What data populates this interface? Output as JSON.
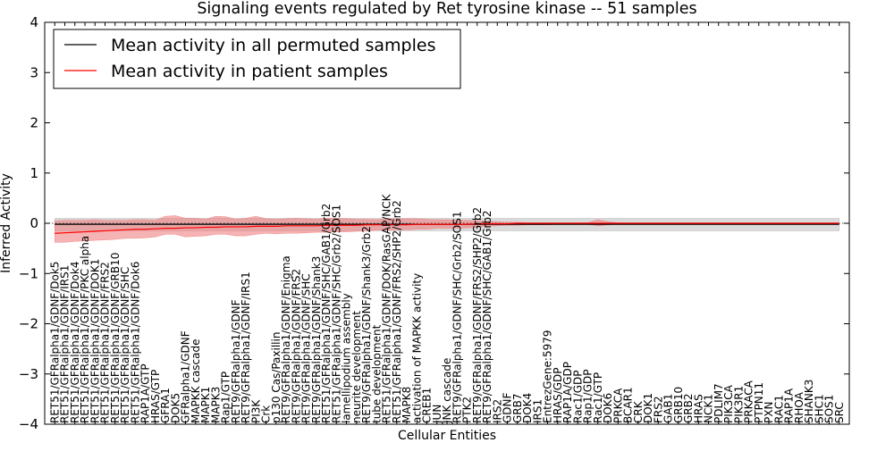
{
  "chart_data": {
    "type": "line",
    "title": "Signaling events regulated by Ret tyrosine kinase -- 51 samples",
    "xlabel": "Cellular Entities",
    "ylabel": "Inferred Activity",
    "ylim": [
      -4,
      4
    ],
    "yticks": [
      -4,
      -3,
      -2,
      -1,
      0,
      1,
      2,
      3,
      4
    ],
    "grid": false,
    "legend_position": "top-left",
    "colors": {
      "permuted_line": "#000000",
      "patient_line": "#ff0000",
      "permuted_band": "#bbbbbb",
      "patient_band": "#f08080"
    },
    "categories": [
      "RET51/GFRalpha1/GDNF/Dok5",
      "RET51/GFRalpha1/GDNF/IRS1",
      "RET51/GFRalpha1/GDNF/Dok4",
      "RET51/GFRalpha1/GDNF/PKC alpha",
      "RET51/GFRalpha1/GDNF/DOK1",
      "RET51/GFRalpha1/GDNF/FRS2",
      "RET51/GFRalpha1/GDNF/GRB10",
      "RET51/GFRalpha1/GDNF/SHC",
      "RET51/GFRalpha1/GDNF/Dok6",
      "RAP1A/GTP",
      "HRAS/GTP",
      "GFRA1",
      "DOK5",
      "GFRalpha1/GDNF",
      "MAPKK cascade",
      "MAPK1",
      "MAPK3",
      "Rap1/GTP",
      "RET9/GFRalpha1/GDNF",
      "RET9/GFRalpha1/GDNF/IRS1",
      "PI3K",
      "Crk",
      "p130 Cas/Paxillin",
      "RET9/GFRalpha1/GDNF/Enigma",
      "RET9/GFRalpha1/GDNF/FRS2",
      "RET9/GFRalpha1/GDNF/SHC",
      "RET9/GFRalpha1/GDNF/Shank3",
      "RET51/GFRalpha1/GDNF/SHC/GAB1/Grb2",
      "RET51/GFRalpha1/GDNF/SHC/Grb2/SOS1",
      "lamellipodium assembly",
      "neurite development",
      "RET9/GFRalpha1/GDNF/Shank3/Grb2",
      "tube development",
      "RET51/GFRalpha1/GDNF/DOK/RasGAP/NCK",
      "RET51/GFRalpha1/GDNF/FRS2/SHP2/Grb2",
      "MAPK8",
      "activation of MAPKK activity",
      "CREB1",
      "JUN",
      "JNK cascade",
      "RET9/GFRalpha1/GDNF/SHC/Grb2/SOS1",
      "PTK2",
      "RET9/GFRalpha1/GDNF/FRS2/SHP2/Grb2",
      "RET9/GFRalpha1/GDNF/SHC/GAB1/Grb2",
      "IRS2",
      "GDNF",
      "GRB7",
      "DOK4",
      "IRS1",
      "EntrezGene:5979",
      "HRAS/GDP",
      "RAP1A/GDP",
      "Rac1/GDP",
      "Rap1/GDP",
      "Rac1/GTP",
      "DOK6",
      "PRKCA",
      "BCAR1",
      "CRK",
      "DOK1",
      "FRS2",
      "GAB1",
      "GRB10",
      "GRB2",
      "HRAS",
      "NCK1",
      "PDLIM7",
      "PIK3CA",
      "PIK3R1",
      "PRKACA",
      "PTPN11",
      "PXN",
      "RAC1",
      "RAP1A",
      "RHOA",
      "SHANK3",
      "SHC1",
      "SOS1",
      "SRC"
    ],
    "series": [
      {
        "name": "Mean activity in all permuted samples",
        "values": [
          -0.02,
          -0.02,
          -0.02,
          -0.02,
          -0.02,
          -0.02,
          -0.02,
          -0.02,
          -0.02,
          -0.02,
          -0.02,
          -0.02,
          -0.02,
          -0.02,
          -0.02,
          -0.02,
          -0.02,
          -0.02,
          -0.02,
          -0.02,
          -0.02,
          -0.02,
          -0.02,
          -0.02,
          -0.02,
          -0.02,
          -0.02,
          -0.02,
          -0.02,
          -0.02,
          -0.02,
          -0.02,
          -0.02,
          -0.02,
          -0.02,
          -0.02,
          -0.02,
          -0.02,
          -0.02,
          -0.02,
          -0.02,
          -0.02,
          -0.02,
          -0.02,
          -0.02,
          -0.02,
          -0.02,
          -0.02,
          -0.02,
          -0.02,
          -0.02,
          -0.02,
          -0.02,
          -0.02,
          -0.02,
          -0.02,
          -0.02,
          -0.02,
          -0.02,
          -0.02,
          -0.02,
          -0.02,
          -0.02,
          -0.02,
          -0.02,
          -0.02,
          -0.02,
          -0.02,
          -0.02,
          -0.02,
          -0.02,
          -0.02,
          -0.02,
          -0.02,
          -0.02,
          -0.02,
          -0.02,
          -0.02,
          -0.02
        ],
        "band_low": [
          -0.15,
          -0.15,
          -0.15,
          -0.15,
          -0.15,
          -0.15,
          -0.15,
          -0.15,
          -0.15,
          -0.15,
          -0.15,
          -0.15,
          -0.15,
          -0.15,
          -0.15,
          -0.15,
          -0.15,
          -0.15,
          -0.15,
          -0.15,
          -0.15,
          -0.15,
          -0.15,
          -0.15,
          -0.15,
          -0.15,
          -0.15,
          -0.15,
          -0.15,
          -0.15,
          -0.15,
          -0.15,
          -0.15,
          -0.15,
          -0.15,
          -0.15,
          -0.15,
          -0.15,
          -0.15,
          -0.15,
          -0.15,
          -0.15,
          -0.15,
          -0.15,
          -0.15,
          -0.15,
          -0.15,
          -0.15,
          -0.15,
          -0.15,
          -0.15,
          -0.15,
          -0.15,
          -0.15,
          -0.15,
          -0.15,
          -0.15,
          -0.15,
          -0.15,
          -0.15,
          -0.15,
          -0.15,
          -0.15,
          -0.15,
          -0.15,
          -0.15,
          -0.15,
          -0.15,
          -0.15,
          -0.15,
          -0.15,
          -0.15,
          -0.15,
          -0.15,
          -0.15,
          -0.15,
          -0.15,
          -0.15,
          -0.15
        ],
        "band_high": [
          0.1,
          0.1,
          0.1,
          0.1,
          0.1,
          0.1,
          0.1,
          0.1,
          0.1,
          0.1,
          0.1,
          0.1,
          0.1,
          0.1,
          0.1,
          0.1,
          0.1,
          0.1,
          0.1,
          0.1,
          0.1,
          0.1,
          0.1,
          0.1,
          0.1,
          0.1,
          0.1,
          0.1,
          0.1,
          0.1,
          0.1,
          0.1,
          0.1,
          0.1,
          0.1,
          0.1,
          0.1,
          0.1,
          0.1,
          0.1,
          0.1,
          0.1,
          0.1,
          0.1,
          0.1,
          0.1,
          0.1,
          0.1,
          0.1,
          0.1,
          0.1,
          0.1,
          0.1,
          0.1,
          0.1,
          0.1,
          0.1,
          0.1,
          0.1,
          0.1,
          0.1,
          0.1,
          0.1,
          0.1,
          0.1,
          0.1,
          0.1,
          0.1,
          0.1,
          0.1,
          0.1,
          0.1,
          0.1,
          0.1,
          0.1,
          0.1,
          0.1,
          0.1,
          0.1
        ]
      },
      {
        "name": "Mean activity in patient samples",
        "values": [
          -0.2,
          -0.19,
          -0.18,
          -0.17,
          -0.16,
          -0.15,
          -0.14,
          -0.13,
          -0.12,
          -0.12,
          -0.11,
          -0.1,
          -0.1,
          -0.09,
          -0.09,
          -0.08,
          -0.08,
          -0.07,
          -0.07,
          -0.07,
          -0.06,
          -0.06,
          -0.06,
          -0.05,
          -0.05,
          -0.05,
          -0.05,
          -0.04,
          -0.04,
          -0.04,
          -0.04,
          -0.03,
          -0.03,
          -0.03,
          -0.03,
          -0.03,
          -0.02,
          -0.02,
          -0.02,
          -0.02,
          -0.02,
          -0.02,
          -0.01,
          -0.01,
          -0.01,
          -0.01,
          0,
          0,
          0,
          0,
          0,
          0,
          0,
          0,
          0,
          0,
          0,
          0,
          0,
          0,
          0,
          0,
          0,
          0,
          0,
          0,
          0,
          0,
          0,
          0,
          0,
          0,
          0,
          0,
          0,
          0,
          0,
          0,
          0
        ],
        "band_low": [
          -0.38,
          -0.38,
          -0.36,
          -0.35,
          -0.34,
          -0.33,
          -0.32,
          -0.3,
          -0.3,
          -0.29,
          -0.27,
          -0.22,
          -0.22,
          -0.27,
          -0.26,
          -0.25,
          -0.22,
          -0.22,
          -0.25,
          -0.25,
          -0.22,
          -0.2,
          -0.21,
          -0.2,
          -0.2,
          -0.19,
          -0.18,
          -0.18,
          -0.17,
          -0.17,
          -0.16,
          -0.15,
          -0.14,
          -0.14,
          -0.13,
          -0.13,
          -0.12,
          -0.12,
          -0.1,
          -0.1,
          -0.1,
          -0.09,
          -0.08,
          -0.06,
          -0.05,
          -0.04,
          -0.04,
          -0.03,
          -0.03,
          -0.03,
          -0.02,
          -0.02,
          -0.02,
          -0.02,
          -0.05,
          -0.03,
          -0.02,
          -0.02,
          -0.02,
          -0.02,
          -0.02,
          -0.02,
          -0.02,
          -0.02,
          -0.02,
          -0.02,
          -0.02,
          -0.02,
          -0.02,
          -0.02,
          -0.02,
          -0.02,
          -0.02,
          -0.02,
          -0.02,
          -0.02,
          -0.02,
          -0.02,
          -0.02
        ],
        "band_high": [
          0.05,
          0.06,
          0.06,
          0.06,
          0.07,
          0.06,
          0.06,
          0.06,
          0.07,
          0.07,
          0.06,
          0.14,
          0.15,
          0.1,
          0.1,
          0.08,
          0.14,
          0.13,
          0.08,
          0.1,
          0.14,
          0.09,
          0.08,
          0.09,
          0.1,
          0.09,
          0.08,
          0.1,
          0.1,
          0.09,
          0.08,
          0.08,
          0.07,
          0.09,
          0.09,
          0.09,
          0.09,
          0.08,
          0.07,
          0.07,
          0.06,
          0.06,
          0.05,
          0.04,
          0.03,
          0.02,
          0.02,
          0.01,
          0.01,
          0.01,
          0.01,
          0.01,
          0.01,
          0.01,
          0.07,
          0.03,
          0.01,
          0.01,
          0.01,
          0.01,
          0.01,
          0.01,
          0.01,
          0.01,
          0.01,
          0.01,
          0.01,
          0.01,
          0.01,
          0.01,
          0.01,
          0.01,
          0.01,
          0.01,
          0.01,
          0.01,
          0.01,
          0.01,
          0.01
        ]
      }
    ]
  }
}
